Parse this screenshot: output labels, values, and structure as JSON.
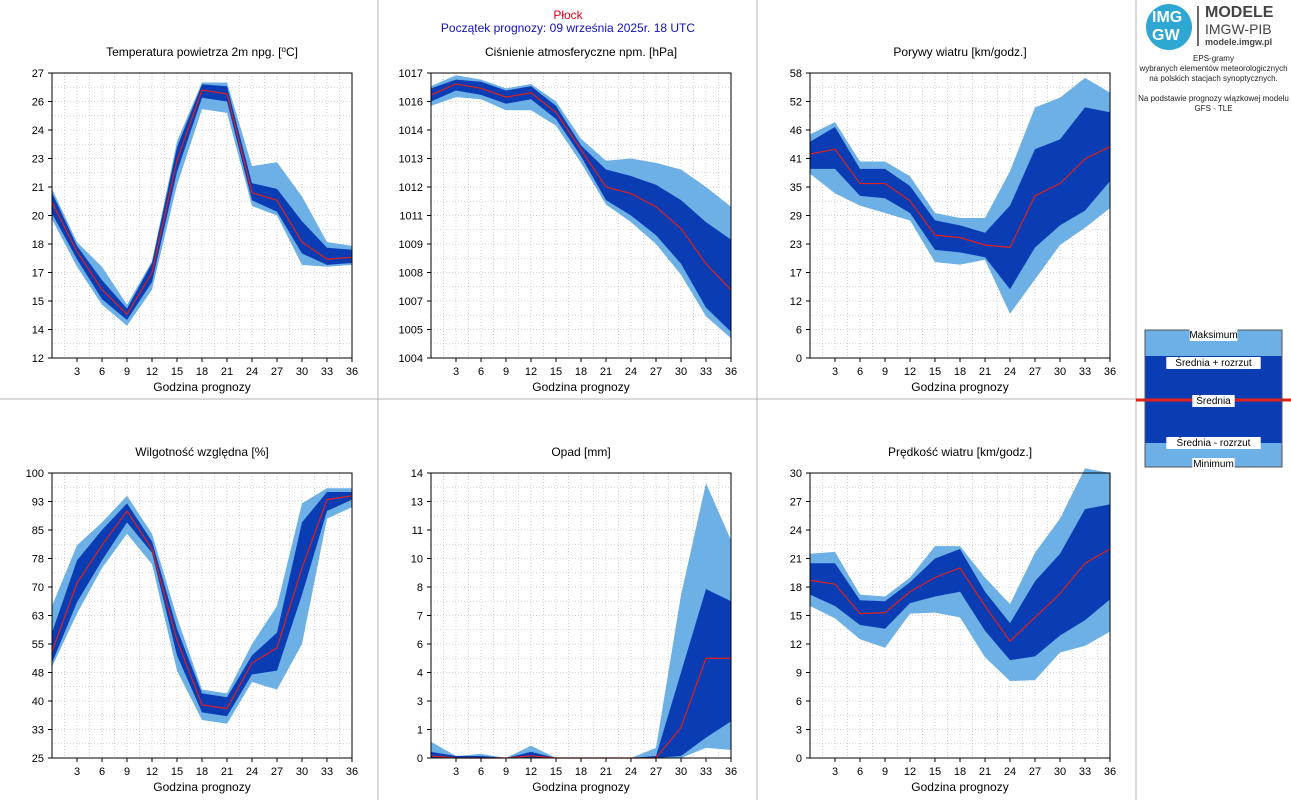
{
  "header": {
    "city": "Płock",
    "forecast_start": "Początek prognozy: 09 września 2025r. 18 UTC"
  },
  "logo": {
    "mark_top": "IMG",
    "mark_bottom": "GW",
    "name": "MODELE",
    "org": "IMGW-PIB",
    "url": "modele.imgw.pl"
  },
  "side_info": {
    "line1": "EPS-gramy",
    "line2": "wybranych elementów meteorologicznych",
    "line3": "na polskich stacjach  synoptycznych.",
    "line4": "Na podstawie prognozy wiązkowej modelu",
    "line5": "GFS - TLE"
  },
  "legend": {
    "max": "Maksimum",
    "mean_plus": "Średnia + rozrzut",
    "mean": "Średnia",
    "mean_minus": "Średnia - rozrzut",
    "min": "Minimum"
  },
  "colors": {
    "envelope": "#6cb0e6",
    "spread": "#0a3db4",
    "mean": "#e0201b",
    "grid": "#c8c8c8",
    "border": "#b4b4b4"
  },
  "chart_data": [
    {
      "type": "area",
      "title": "Temperatura powietrza 2m npg. [°C]",
      "xlabel": "Godzina prognozy",
      "x": [
        0,
        3,
        6,
        9,
        12,
        15,
        18,
        21,
        24,
        27,
        30,
        33,
        36
      ],
      "xticks": [
        3,
        6,
        9,
        12,
        15,
        18,
        21,
        24,
        27,
        30,
        33,
        36
      ],
      "ylim": [
        12,
        27
      ],
      "yticks": [
        "12",
        "14",
        "15",
        "17",
        "18",
        "20",
        "21",
        "23",
        "24",
        "26",
        "27"
      ],
      "max": [
        20.9,
        18.1,
        16.8,
        14.8,
        17.1,
        23.4,
        26.5,
        26.5,
        22.1,
        22.3,
        20.5,
        18.1,
        17.9
      ],
      "sp": [
        20.7,
        17.9,
        16.1,
        14.6,
        17.0,
        23.1,
        26.4,
        26.3,
        21.2,
        20.9,
        19.2,
        17.8,
        17.7
      ],
      "mean": [
        20.2,
        17.6,
        15.6,
        14.3,
        16.5,
        22.4,
        26.1,
        25.9,
        20.7,
        20.3,
        18.1,
        17.2,
        17.3
      ],
      "sm": [
        19.6,
        17.2,
        15.1,
        14.0,
        16.0,
        21.8,
        25.7,
        25.5,
        20.3,
        19.7,
        17.5,
        16.9,
        17.0
      ],
      "min": [
        19.3,
        16.8,
        14.8,
        13.7,
        15.6,
        21.1,
        25.1,
        24.9,
        20.0,
        19.5,
        16.9,
        16.8,
        16.9
      ]
    },
    {
      "type": "area",
      "title": "Ciśnienie atmosferyczne npm. [hPa]",
      "xlabel": "Godzina prognozy",
      "x": [
        0,
        3,
        6,
        9,
        12,
        15,
        18,
        21,
        24,
        27,
        30,
        33,
        36
      ],
      "xticks": [
        3,
        6,
        9,
        12,
        15,
        18,
        21,
        24,
        27,
        30,
        33,
        36
      ],
      "ylim": [
        1004,
        1017
      ],
      "yticks": [
        "1004",
        "1005",
        "1007",
        "1008",
        "1009",
        "1011",
        "1012",
        "1013",
        "1014",
        "1016",
        "1017"
      ],
      "max": [
        1016.4,
        1016.9,
        1016.7,
        1016.3,
        1016.5,
        1015.7,
        1014.0,
        1013.0,
        1013.1,
        1012.9,
        1012.6,
        1011.8,
        1010.9
      ],
      "sp": [
        1016.3,
        1016.7,
        1016.6,
        1016.2,
        1016.4,
        1015.5,
        1013.7,
        1012.6,
        1012.3,
        1011.9,
        1011.2,
        1010.2,
        1009.4
      ],
      "mean": [
        1016.0,
        1016.5,
        1016.3,
        1015.9,
        1016.1,
        1015.2,
        1013.5,
        1011.8,
        1011.5,
        1010.9,
        1009.9,
        1008.3,
        1007.1
      ],
      "sm": [
        1015.7,
        1016.2,
        1016.0,
        1015.6,
        1015.8,
        1014.9,
        1013.2,
        1011.2,
        1010.5,
        1009.6,
        1008.3,
        1006.3,
        1005.2
      ],
      "min": [
        1015.5,
        1015.9,
        1015.8,
        1015.3,
        1015.3,
        1014.6,
        1012.9,
        1011.0,
        1010.2,
        1009.2,
        1007.8,
        1005.9,
        1004.9
      ]
    },
    {
      "type": "area",
      "title": "Porywy wiatru [km/godz.]",
      "xlabel": "Godzina prognozy",
      "x": [
        0,
        3,
        6,
        9,
        12,
        15,
        18,
        21,
        24,
        27,
        30,
        33,
        36
      ],
      "xticks": [
        3,
        6,
        9,
        12,
        15,
        18,
        21,
        24,
        27,
        30,
        33,
        36
      ],
      "ylim": [
        0,
        58
      ],
      "yticks": [
        "0",
        "6",
        "12",
        "17",
        "23",
        "29",
        "35",
        "41",
        "46",
        "52",
        "58"
      ],
      "max": [
        45.5,
        48.0,
        40.0,
        40.0,
        37.0,
        29.5,
        28.5,
        28.5,
        38.0,
        51.0,
        53.0,
        57.0,
        54.0
      ],
      "sp": [
        44.0,
        47.0,
        38.5,
        38.5,
        35.0,
        28.0,
        27.0,
        25.5,
        31.0,
        42.5,
        44.5,
        51.0,
        50.0
      ],
      "mean": [
        41.5,
        42.5,
        35.5,
        35.5,
        32.0,
        25.0,
        24.5,
        23.0,
        22.5,
        33.0,
        35.5,
        40.5,
        43.0
      ],
      "sm": [
        38.5,
        38.5,
        33.0,
        32.5,
        29.5,
        22.0,
        21.5,
        20.5,
        14.0,
        22.5,
        27.0,
        30.0,
        36.0
      ],
      "min": [
        37.5,
        33.5,
        31.0,
        29.5,
        28.0,
        19.5,
        19.0,
        20.0,
        9.0,
        16.0,
        23.0,
        26.5,
        30.5
      ]
    },
    {
      "type": "area",
      "title": "Wilgotność względna [%]",
      "xlabel": "Godzina prognozy",
      "x": [
        0,
        3,
        6,
        9,
        12,
        15,
        18,
        21,
        24,
        27,
        30,
        33,
        36
      ],
      "xticks": [
        3,
        6,
        9,
        12,
        15,
        18,
        21,
        24,
        27,
        30,
        33,
        36
      ],
      "ylim": [
        25,
        100
      ],
      "yticks": [
        "25",
        "33",
        "40",
        "48",
        "55",
        "63",
        "70",
        "78",
        "85",
        "93",
        "100"
      ],
      "max": [
        65,
        81,
        87,
        94,
        84,
        62,
        43,
        42,
        55,
        65,
        92,
        96,
        96
      ],
      "sp": [
        58,
        77,
        85,
        92,
        82,
        59,
        42,
        41,
        52,
        58,
        87,
        95,
        95
      ],
      "mean": [
        53,
        71,
        81,
        90,
        80,
        56,
        39,
        38,
        50,
        54,
        75,
        93,
        94
      ],
      "sm": [
        50,
        66,
        77,
        87,
        79,
        52,
        37,
        36,
        47,
        48,
        68,
        90,
        93
      ],
      "min": [
        49,
        63,
        75,
        84,
        76,
        48,
        35,
        34,
        45,
        43,
        55,
        88,
        91
      ]
    },
    {
      "type": "area",
      "title": "Opad [mm]",
      "xlabel": "Godzina prognozy",
      "x": [
        0,
        3,
        6,
        9,
        12,
        15,
        18,
        21,
        24,
        27,
        30,
        33,
        36
      ],
      "xticks": [
        3,
        6,
        9,
        12,
        15,
        18,
        21,
        24,
        27,
        30,
        33,
        36
      ],
      "ylim": [
        0,
        14
      ],
      "yticks": [
        "0",
        "1",
        "3",
        "4",
        "6",
        "7",
        "8",
        "10",
        "11",
        "13",
        "14"
      ],
      "max": [
        0.8,
        0.1,
        0.2,
        0.0,
        0.6,
        0.0,
        0.0,
        0.0,
        0.0,
        0.5,
        8.0,
        13.5,
        10.7
      ],
      "sp": [
        0.3,
        0.1,
        0.1,
        0.0,
        0.3,
        0.0,
        0.0,
        0.0,
        0.0,
        0.1,
        4.2,
        8.3,
        7.7
      ],
      "mean": [
        0.1,
        0.0,
        0.0,
        0.0,
        0.1,
        0.0,
        0.0,
        0.0,
        0.0,
        0.0,
        1.5,
        4.9,
        4.9
      ],
      "sm": [
        0.0,
        0.0,
        0.0,
        0.0,
        0.0,
        0.0,
        0.0,
        0.0,
        0.0,
        0.0,
        0.1,
        1.0,
        1.8
      ],
      "min": [
        0.0,
        0.0,
        0.0,
        0.0,
        0.0,
        0.0,
        0.0,
        0.0,
        0.0,
        0.0,
        0.0,
        0.5,
        0.4
      ]
    },
    {
      "type": "area",
      "title": "Prędkość wiatru [km/godz.]",
      "xlabel": "Godzina prognozy",
      "x": [
        0,
        3,
        6,
        9,
        12,
        15,
        18,
        21,
        24,
        27,
        30,
        33,
        36
      ],
      "xticks": [
        3,
        6,
        9,
        12,
        15,
        18,
        21,
        24,
        27,
        30,
        33,
        36
      ],
      "ylim": [
        0,
        30
      ],
      "yticks": [
        "0",
        "3",
        "6",
        "9",
        "12",
        "15",
        "18",
        "21",
        "24",
        "27",
        "30"
      ],
      "max": [
        21.5,
        21.7,
        17.2,
        17.0,
        19.0,
        22.3,
        22.3,
        19.0,
        16.2,
        21.6,
        25.2,
        30.5,
        30.0
      ],
      "sp": [
        20.5,
        20.5,
        16.6,
        16.5,
        18.5,
        21.0,
        22.0,
        17.5,
        14.2,
        18.6,
        21.5,
        26.2,
        26.7
      ],
      "mean": [
        18.7,
        18.3,
        15.2,
        15.3,
        17.5,
        19.0,
        20.0,
        16.0,
        12.3,
        14.8,
        17.3,
        20.5,
        22.0
      ],
      "sm": [
        17.2,
        16.0,
        14.0,
        13.6,
        16.3,
        17.0,
        17.5,
        13.4,
        10.3,
        10.7,
        12.9,
        14.5,
        16.7
      ],
      "min": [
        16.0,
        14.7,
        12.5,
        11.6,
        15.2,
        15.3,
        14.8,
        10.6,
        8.1,
        8.2,
        11.1,
        11.8,
        13.3
      ]
    }
  ]
}
